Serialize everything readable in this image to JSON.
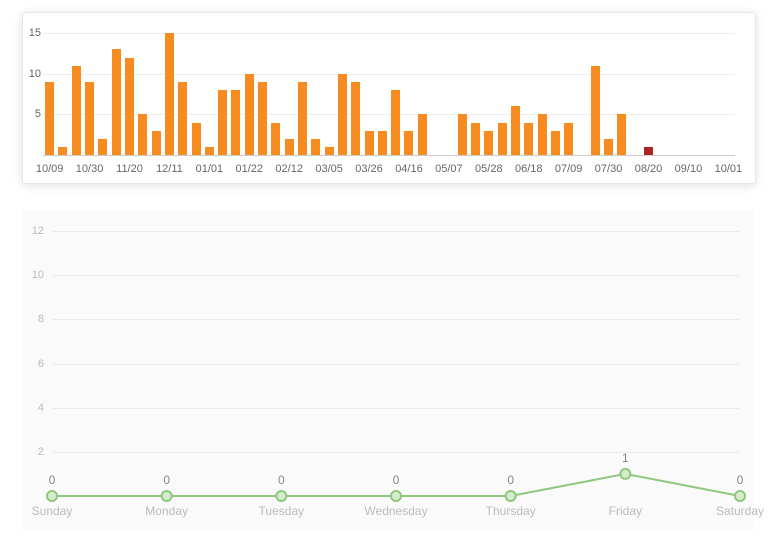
{
  "bar_chart": {
    "type": "bar",
    "values": [
      9,
      1,
      11,
      9,
      2,
      13,
      12,
      5,
      3,
      15,
      9,
      4,
      1,
      8,
      8,
      10,
      9,
      4,
      2,
      9,
      2,
      1,
      10,
      9,
      3,
      3,
      8,
      3,
      5,
      0,
      0,
      5,
      4,
      3,
      4,
      6,
      4,
      5,
      3,
      4,
      0,
      11,
      2,
      5,
      0,
      1
    ],
    "highlight_index": 45,
    "bar_color": "#f68b1f",
    "highlight_color": "#b02121",
    "ymin": 0,
    "ymax": 16,
    "yticks": [
      5,
      10,
      15
    ],
    "xticks": [
      {
        "i": 0,
        "label": "10/09"
      },
      {
        "i": 3,
        "label": "10/30"
      },
      {
        "i": 6,
        "label": "11/20"
      },
      {
        "i": 9,
        "label": "12/11"
      },
      {
        "i": 12,
        "label": "01/01"
      },
      {
        "i": 15,
        "label": "01/22"
      },
      {
        "i": 18,
        "label": "02/12"
      },
      {
        "i": 21,
        "label": "03/05"
      },
      {
        "i": 24,
        "label": "03/26"
      },
      {
        "i": 27,
        "label": "04/16"
      },
      {
        "i": 30,
        "label": "05/07"
      },
      {
        "i": 33,
        "label": "05/28"
      },
      {
        "i": 36,
        "label": "06/18"
      },
      {
        "i": 39,
        "label": "07/09"
      },
      {
        "i": 42,
        "label": "07/30"
      },
      {
        "i": 45,
        "label": "08/20"
      },
      {
        "i": 48,
        "label": "09/10"
      },
      {
        "i": 51,
        "label": "10/01"
      }
    ],
    "xtick_span": 52,
    "bar_width_ratio": 0.68,
    "grid_color": "#eeeeee",
    "tick_color": "#666666",
    "tick_fontsize": 11,
    "background": "#ffffff",
    "border_color": "#e6e6e6"
  },
  "line_chart": {
    "type": "line",
    "categories": [
      "Sunday",
      "Monday",
      "Tuesday",
      "Wednesday",
      "Thursday",
      "Friday",
      "Saturday"
    ],
    "values": [
      0,
      0,
      0,
      0,
      0,
      1,
      0
    ],
    "ymin": 0,
    "ymax": 12.5,
    "yticks": [
      2,
      4,
      6,
      8,
      10,
      12
    ],
    "line_color": "#8fc77d",
    "marker_fill": "#d7ebcf",
    "marker_stroke": "#8fc77d",
    "marker_radius": 5,
    "line_width": 2,
    "grid_color": "#ececec",
    "tick_color": "#bbbbbb",
    "value_color": "#888888",
    "tick_fontsize": 12,
    "background": "#fafafa"
  }
}
